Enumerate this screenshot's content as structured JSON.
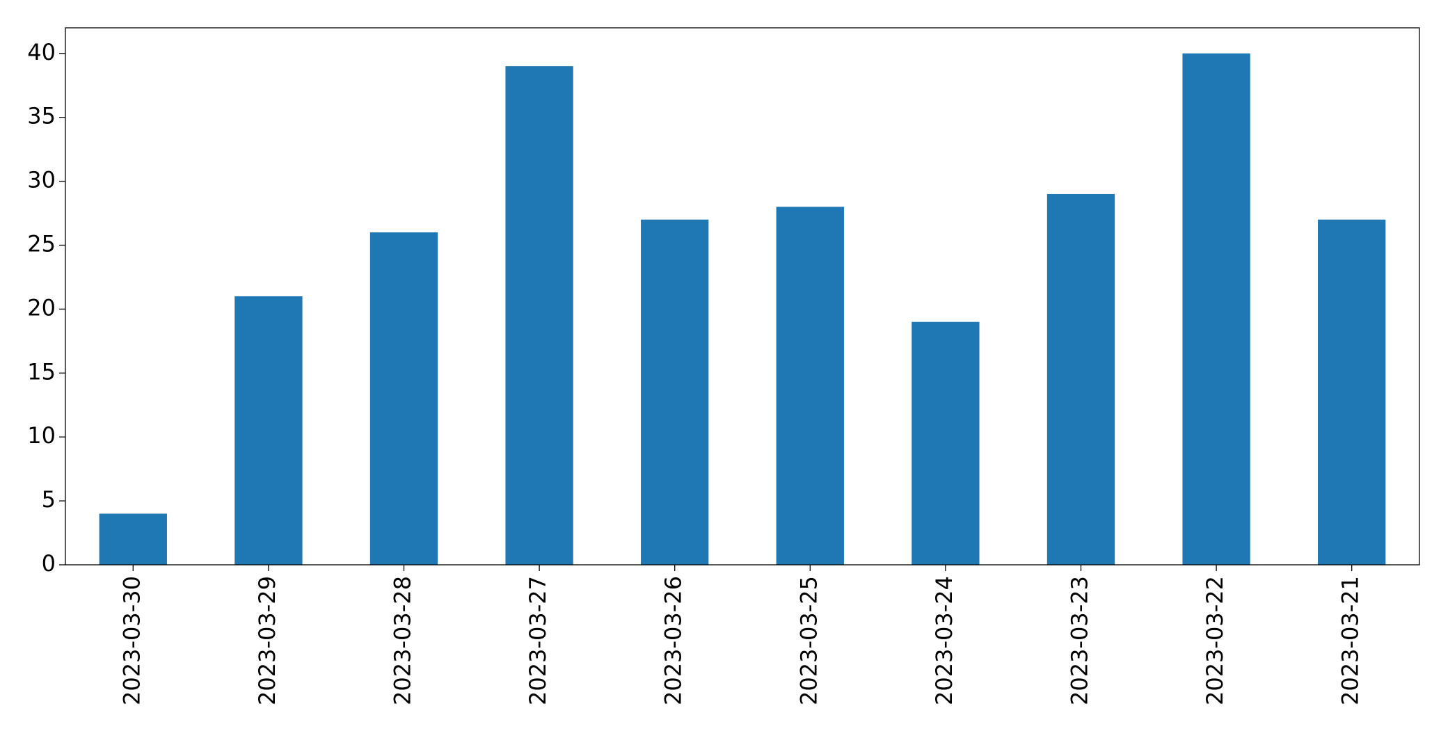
{
  "chart_data": {
    "type": "bar",
    "categories": [
      "2023-03-30",
      "2023-03-29",
      "2023-03-28",
      "2023-03-27",
      "2023-03-26",
      "2023-03-25",
      "2023-03-24",
      "2023-03-23",
      "2023-03-22",
      "2023-03-21"
    ],
    "values": [
      4,
      21,
      26,
      39,
      27,
      28,
      19,
      29,
      40,
      27
    ],
    "color": "#1f77b4",
    "ylim": [
      0,
      42
    ],
    "yticks": [
      0,
      5,
      10,
      15,
      20,
      25,
      30,
      35,
      40
    ],
    "grid": false
  }
}
